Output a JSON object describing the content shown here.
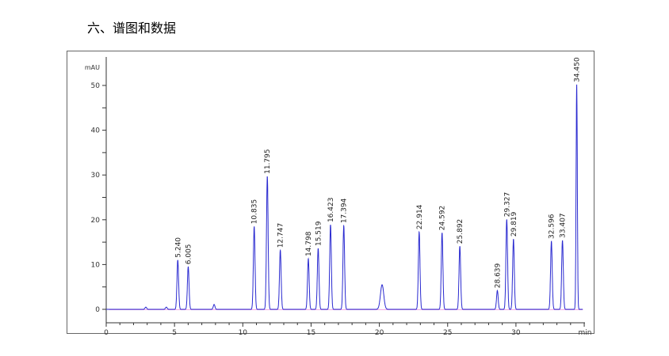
{
  "heading": "六、谱图和数据",
  "chart_data": {
    "type": "line",
    "title": "",
    "xlabel": "min",
    "ylabel": "mAU",
    "xlim": [
      0,
      35
    ],
    "ylim": [
      -3,
      55
    ],
    "xticks": [
      0,
      5,
      10,
      15,
      20,
      25,
      30
    ],
    "yticks": [
      0,
      10,
      20,
      30,
      40,
      50
    ],
    "grid": false,
    "line_color": "#2a2ad0",
    "baseline_color": "#e040c0",
    "peaks": [
      {
        "rt": 2.9,
        "height": 0.5,
        "label": ""
      },
      {
        "rt": 4.4,
        "height": 0.5,
        "label": ""
      },
      {
        "rt": 5.24,
        "height": 11.0,
        "label": "5.240"
      },
      {
        "rt": 6.005,
        "height": 9.5,
        "label": "6.005"
      },
      {
        "rt": 7.9,
        "height": 1.1,
        "label": ""
      },
      {
        "rt": 10.835,
        "height": 18.5,
        "label": "10.835"
      },
      {
        "rt": 11.795,
        "height": 29.7,
        "label": "11.795"
      },
      {
        "rt": 12.747,
        "height": 13.2,
        "label": "12.747"
      },
      {
        "rt": 14.798,
        "height": 11.3,
        "label": "14.798"
      },
      {
        "rt": 15.519,
        "height": 13.6,
        "label": "15.519"
      },
      {
        "rt": 16.423,
        "height": 18.9,
        "label": "16.423"
      },
      {
        "rt": 17.394,
        "height": 18.7,
        "label": "17.394"
      },
      {
        "rt": 20.2,
        "height": 5.5,
        "label": ""
      },
      {
        "rt": 22.914,
        "height": 17.3,
        "label": "22.914"
      },
      {
        "rt": 24.592,
        "height": 17.1,
        "label": "24.592"
      },
      {
        "rt": 25.892,
        "height": 14.1,
        "label": "25.892"
      },
      {
        "rt": 28.639,
        "height": 4.2,
        "label": "28.639"
      },
      {
        "rt": 29.327,
        "height": 20.1,
        "label": "29.327"
      },
      {
        "rt": 29.819,
        "height": 15.7,
        "label": "29.819"
      },
      {
        "rt": 32.596,
        "height": 15.2,
        "label": "32.596"
      },
      {
        "rt": 33.407,
        "height": 15.4,
        "label": "33.407"
      },
      {
        "rt": 34.45,
        "height": 50.2,
        "label": "34.450"
      }
    ]
  }
}
